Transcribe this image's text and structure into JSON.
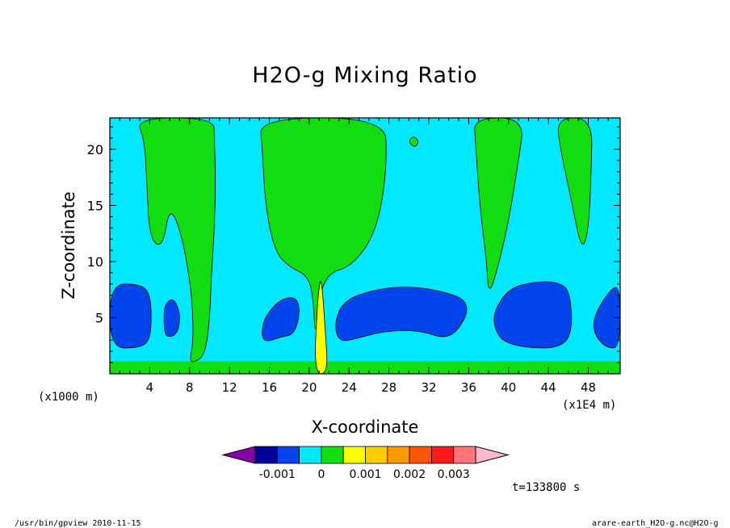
{
  "chart_data": {
    "type": "heatmap",
    "title": "H2O-g Mixing Ratio",
    "xlabel": "X-coordinate",
    "ylabel": "Z-coordinate",
    "x_unit_left": "(x1000 m)",
    "x_unit_right": "(x1E4 m)",
    "x_ticks": [
      4,
      8,
      12,
      16,
      20,
      24,
      28,
      32,
      36,
      40,
      44,
      48
    ],
    "y_ticks": [
      5,
      10,
      15,
      20
    ],
    "xlim": [
      0,
      51.2
    ],
    "ylim": [
      0,
      22.8
    ],
    "grid": false,
    "colorbar": {
      "colors": [
        "#8800aa",
        "#000099",
        "#0044ee",
        "#00e8ff",
        "#11dd11",
        "#ffff00",
        "#ffcc00",
        "#ff9900",
        "#ff5500",
        "#ff1a1a",
        "#ff7777",
        "#ffbbcc"
      ],
      "tick_labels": [
        "-0.001",
        "0",
        "0.001",
        "0.002",
        "0.003"
      ]
    },
    "regions": [
      {
        "level": "-0.001..-0.0005",
        "color": "#0044ee",
        "description": "dry blue band",
        "shapes": [
          {
            "x": [
              0,
              3.0,
              4.0,
              4.2,
              4.0,
              3.0,
              0
            ],
            "y": [
              8.0,
              8.0,
              7.2,
              5.0,
              3.0,
              2.3,
              2.3
            ]
          },
          {
            "x": [
              5.5,
              6.4,
              7.1,
              6.8,
              5.6,
              5.4
            ],
            "y": [
              6.2,
              6.8,
              5.3,
              3.5,
              3.2,
              4.6
            ]
          },
          {
            "x": [
              15.5,
              17.0,
              18.7,
              19.1,
              18.5,
              17.2,
              15.6,
              15.2
            ],
            "y": [
              5.0,
              6.6,
              6.9,
              5.5,
              3.5,
              3.3,
              2.8,
              3.5
            ]
          },
          {
            "x": [
              22.5,
              23.5,
              27.0,
              30.5,
              34.0,
              35.8,
              35.8,
              34.0,
              31.0,
              27.5,
              25.0,
              23.0
            ],
            "y": [
              4.5,
              6.6,
              7.6,
              7.8,
              7.2,
              6.5,
              5.0,
              3.0,
              3.9,
              3.8,
              3.2,
              2.8
            ]
          },
          {
            "x": [
              38.5,
              40.0,
              42.5,
              45.0,
              46.2,
              46.4,
              45.0,
              42.0,
              39.5,
              38.6
            ],
            "y": [
              5.5,
              7.6,
              8.2,
              8.2,
              7.3,
              3.5,
              2.3,
              2.3,
              2.8,
              4.0
            ]
          },
          {
            "x": [
              48.5,
              50.0,
              51.2,
              51.2,
              49.8,
              48.6
            ],
            "y": [
              5.0,
              7.3,
              8.0,
              2.3,
              2.3,
              3.5
            ]
          }
        ]
      },
      {
        "level": "0..0.0005",
        "color": "#11dd11",
        "description": "moist green plumes and surface layer",
        "shapes": [
          {
            "x": [
              2.6,
              3.5,
              3.7,
              4.0,
              5.3,
              6.0,
              7.2,
              8.2,
              8.4,
              8.0,
              8.4,
              9.5,
              10.0,
              10.2,
              10.5,
              10.6,
              10.5,
              10.4
            ],
            "y": [
              22.8,
              20.8,
              17.0,
              12.0,
              11.2,
              15.0,
              12.5,
              7.5,
              3.0,
              1.2,
              1.0,
              1.6,
              4.5,
              9.0,
              13.0,
              17.0,
              21.0,
              22.8
            ]
          },
          {
            "x": [
              15.0,
              15.3,
              15.6,
              16.5,
              18.0,
              19.8,
              20.4,
              20.6,
              21.0,
              22.0,
              24.0,
              26.0,
              27.2,
              27.8,
              27.6
            ],
            "y": [
              22.8,
              20.0,
              15.0,
              11.0,
              9.5,
              8.8,
              7.0,
              3.0,
              7.0,
              9.0,
              9.5,
              11.5,
              14.5,
              19.0,
              22.8
            ]
          },
          {
            "x": [
              36.5,
              36.7,
              37.1,
              37.8,
              38.0,
              38.8,
              40.0,
              41.0,
              41.6
            ],
            "y": [
              22.8,
              20.5,
              15.0,
              10.0,
              7.0,
              9.0,
              13.5,
              19.0,
              22.8
            ]
          },
          {
            "x": [
              44.8,
              45.2,
              46.3,
              47.3,
              48.0,
              48.3,
              48.4
            ],
            "y": [
              22.8,
              20.0,
              15.5,
              11.0,
              12.5,
              18.0,
              22.8
            ]
          },
          {
            "x": [
              30.0,
              30.5,
              31.0,
              30.7,
              30.2
            ],
            "y": [
              20.8,
              21.2,
              20.7,
              20.2,
              20.4
            ]
          }
        ]
      },
      {
        "level": "0.0005..0.001",
        "color": "#ffff00",
        "description": "central moist column near x=21",
        "shapes": [
          {
            "x": [
              20.5,
              20.8,
              21.1,
              21.3,
              21.6,
              21.9
            ],
            "y": [
              0,
              6.0,
              8.5,
              7.8,
              4.0,
              0
            ]
          }
        ]
      }
    ]
  },
  "time_label": "t=133800 s",
  "footer_left": "/usr/bin/gpview  2010-11-15",
  "footer_right": "arare-earth_H2O-g.nc@H2O-g"
}
